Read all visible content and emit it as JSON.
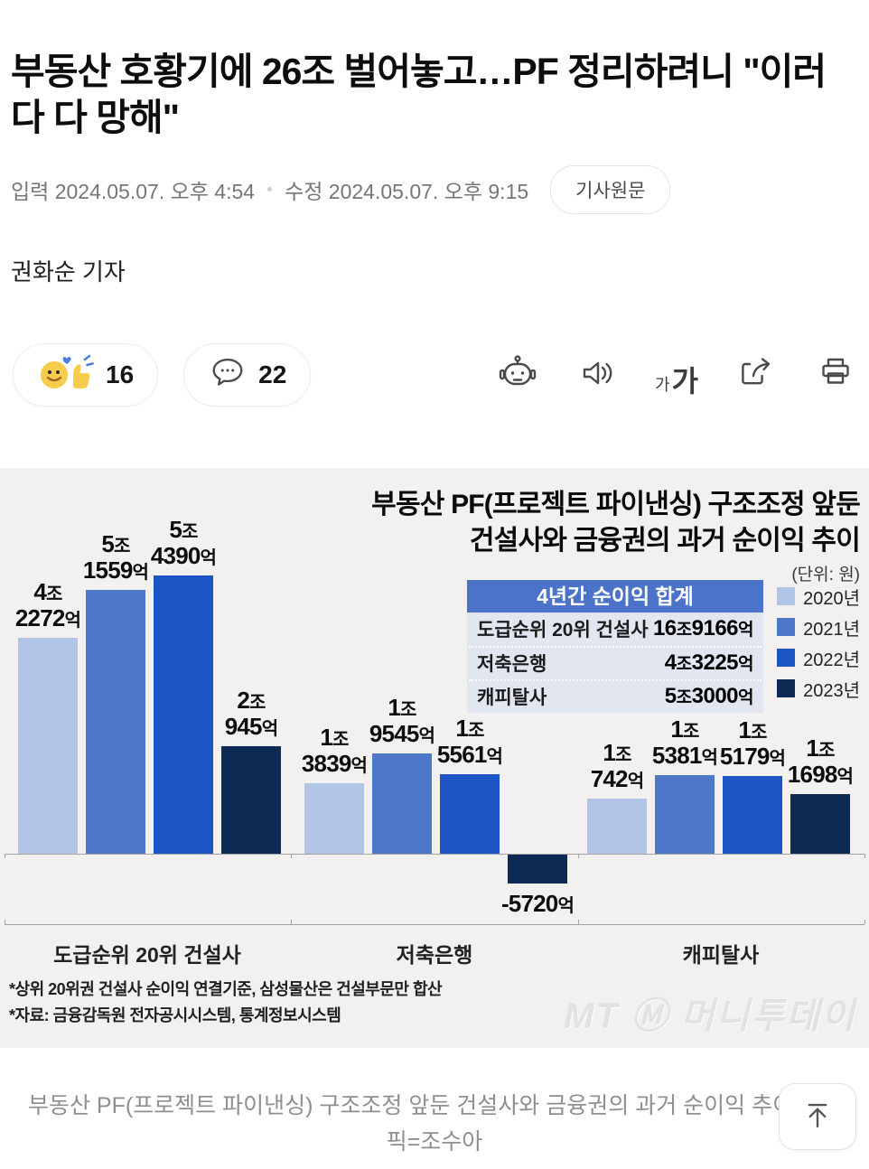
{
  "article": {
    "title": "부동산 호황기에 26조 벌어놓고…PF 정리하려니 \"이러다 다 망해\"",
    "published": "입력 2024.05.07. 오후 4:54",
    "modified": "수정 2024.05.07. 오후 9:15",
    "original_link_label": "기사원문",
    "reporter": "권화순 기자"
  },
  "toolbar": {
    "reaction_count": "16",
    "comment_count": "22",
    "font_small": "가",
    "font_large": "가",
    "icons": [
      "reaction-emoji",
      "comment-bubble",
      "ai-robot",
      "speaker",
      "font-size",
      "share",
      "print"
    ]
  },
  "chart_data": {
    "type": "bar",
    "title": "부동산 PF(프로젝트 파이낸싱) 구조조정 앞둔\n건설사와 금융권의 과거 순이익 추이",
    "unit_label": "(단위: 원)",
    "value_unit": "억원",
    "categories": [
      "도급순위 20위 건설사",
      "저축은행",
      "캐피탈사"
    ],
    "series": [
      {
        "name": "2020년",
        "color": "#b2c5e7",
        "values": [
          42272,
          13839,
          10742
        ],
        "labels": [
          [
            "4조",
            "2272억"
          ],
          [
            "1조",
            "3839억"
          ],
          [
            "1조",
            "742억"
          ]
        ]
      },
      {
        "name": "2021년",
        "color": "#4d78ca",
        "values": [
          51559,
          19545,
          15381
        ],
        "labels": [
          [
            "5조",
            "1559억"
          ],
          [
            "1조",
            "9545억"
          ],
          [
            "1조",
            "5381억"
          ]
        ]
      },
      {
        "name": "2022년",
        "color": "#1e55c4",
        "values": [
          54390,
          15561,
          15179
        ],
        "labels": [
          [
            "5조",
            "4390억"
          ],
          [
            "1조",
            "5561억"
          ],
          [
            "1조",
            "5179억"
          ]
        ]
      },
      {
        "name": "2023년",
        "color": "#0d2a55",
        "values": [
          20945,
          -5720,
          11698
        ],
        "labels": [
          [
            "2조",
            "945억"
          ],
          [
            "-5720억"
          ],
          [
            "1조",
            "1698억"
          ]
        ]
      }
    ],
    "ylim": [
      -6000,
      56000
    ],
    "grid": false,
    "legend_position": "top-right",
    "summary_table": {
      "header": "4년간 순이익 합계",
      "rows": [
        {
          "label": "도급순위 20위 건설사",
          "value": "16조9166억"
        },
        {
          "label": "저축은행",
          "value": "4조3225억"
        },
        {
          "label": "캐피탈사",
          "value": "5조3000억"
        }
      ]
    },
    "footnotes": [
      "*상위 20위권 건설사 순이익 연결기준, 삼성물산은 건설부문만 합산",
      "*자료: 금융감독원 전자공시시스템, 통계정보시스템"
    ],
    "watermark": "MT Ⓜ 머니투데이"
  },
  "caption": "부동산 PF(프로젝트 파이낸싱) 구조조정 앞둔 건설사와 금융권의 과거 순이익 추이/그래픽=조수아"
}
